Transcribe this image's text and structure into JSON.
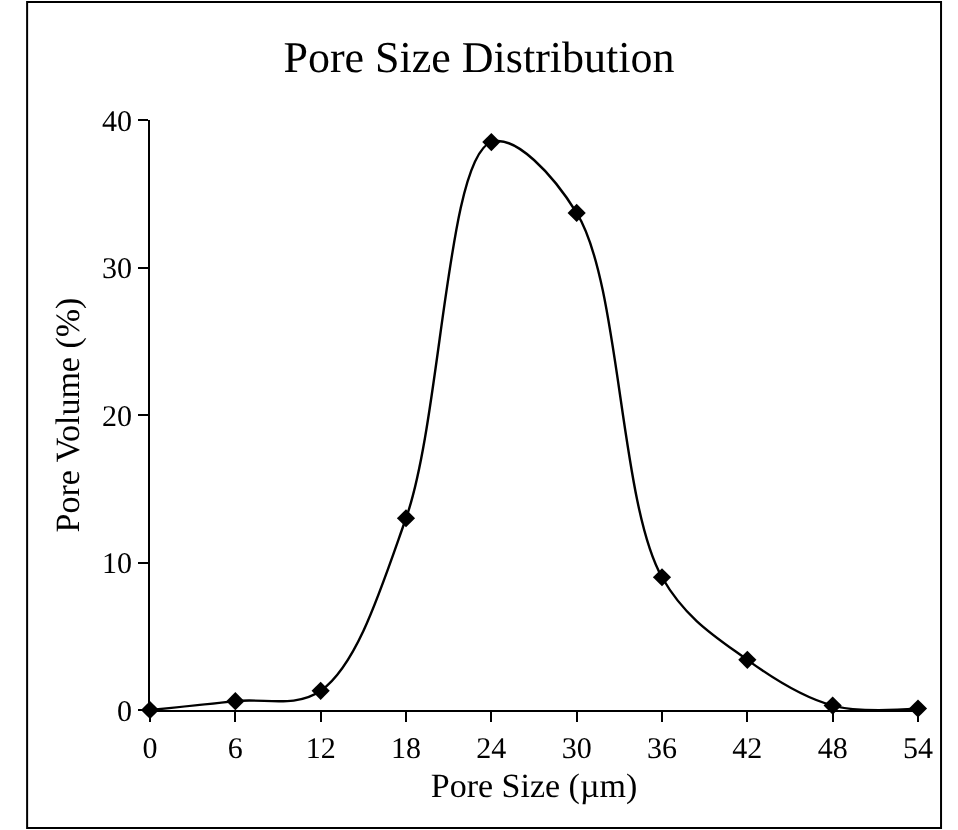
{
  "chart_data": {
    "type": "line",
    "title": "Pore Size Distribution",
    "xlabel": "Pore Size (µm)",
    "ylabel": "Pore Volume (%)",
    "x": [
      0,
      6,
      12,
      18,
      24,
      30,
      36,
      42,
      48,
      54
    ],
    "series": [
      {
        "color": "#000000",
        "values": [
          0,
          0.6,
          1.3,
          13,
          38.5,
          33.7,
          9,
          3.4,
          0.3,
          0.1
        ]
      }
    ],
    "xlim": [
      0,
      54
    ],
    "xticks": [
      0,
      6,
      12,
      18,
      24,
      30,
      36,
      42,
      48,
      54
    ],
    "ylim": [
      0,
      40
    ],
    "yticks": [
      0,
      10,
      20,
      30,
      40
    ],
    "legend": false,
    "marker": "diamond",
    "line_style": "solid"
  }
}
